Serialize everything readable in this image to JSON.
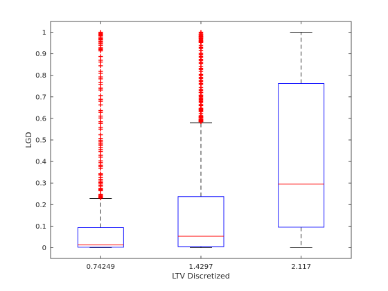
{
  "chart_data": {
    "type": "box",
    "categories": [
      "0.74249",
      "1.4297",
      "2.117"
    ],
    "xlabel": "LTV Discretized",
    "ylabel": "LGD",
    "ylim": [
      -0.05,
      1.05
    ],
    "yticks": [
      0,
      0.1,
      0.2,
      0.3,
      0.4,
      0.5,
      0.6,
      0.7,
      0.8,
      0.9,
      1
    ],
    "ytick_labels": [
      "0",
      "0.1",
      "0.2",
      "0.3",
      "0.4",
      "0.5",
      "0.6",
      "0.7",
      "0.8",
      "0.9",
      "1"
    ],
    "grid": false,
    "boxes": [
      {
        "category": "0.74249",
        "whisker_low": 0,
        "q1": 0.002,
        "median": 0.013,
        "q3": 0.093,
        "whisker_high": 0.228,
        "outliers_range": [
          0.23,
          1.0
        ]
      },
      {
        "category": "1.4297",
        "whisker_low": 0,
        "q1": 0.005,
        "median": 0.053,
        "q3": 0.237,
        "whisker_high": 0.58,
        "outliers_range": [
          0.585,
          1.0
        ]
      },
      {
        "category": "2.117",
        "whisker_low": 0,
        "q1": 0.095,
        "median": 0.295,
        "q3": 0.762,
        "whisker_high": 1.0,
        "outliers_range": null
      }
    ],
    "colors": {
      "box": "#0000ff",
      "median": "#ff0000",
      "whisker": "#000000",
      "outlier": "#ff0000",
      "axis": "#262626"
    }
  }
}
